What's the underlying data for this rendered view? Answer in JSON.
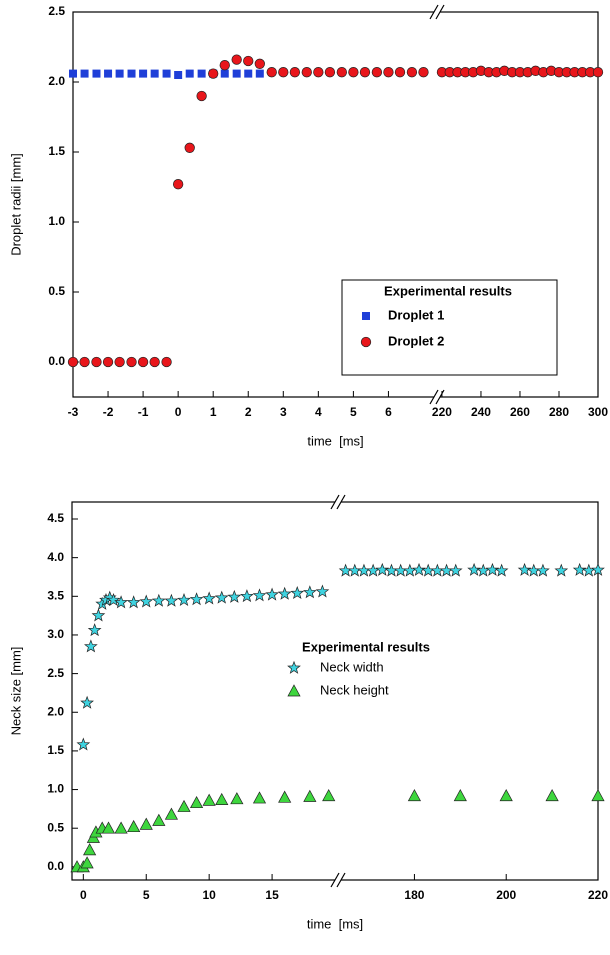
{
  "chart_data": [
    {
      "type": "scatter",
      "ylabel": "Droplet radii [mm]",
      "xlabel": "time  [ms]",
      "legend_title": "Experimental results",
      "legend_box": true,
      "ylim": [
        -0.25,
        2.5
      ],
      "yticks": [
        {
          "value": 0,
          "label": "0.0"
        },
        0.5,
        {
          "value": 1,
          "label": "1.0"
        },
        1.5,
        {
          "value": 2,
          "label": "2.0"
        },
        2.5
      ],
      "x_segments": [
        {
          "xlim": [
            -3,
            7.3
          ],
          "xticks": [
            -3,
            -2,
            -1,
            0,
            1,
            2,
            3,
            4,
            5,
            6
          ]
        },
        {
          "xlim": [
            219,
            300
          ],
          "xticks": [
            220,
            240,
            260,
            280,
            300
          ]
        }
      ],
      "series": [
        {
          "name": "Droplet 1",
          "color": "#1f3fd8",
          "marker": "square",
          "x": [
            -3,
            -2.67,
            -2.33,
            -2,
            -1.67,
            -1.33,
            -1,
            -0.67,
            -0.33,
            0,
            0.33,
            0.67,
            1,
            1.33,
            1.67,
            2,
            2.33
          ],
          "values": [
            2.06,
            2.06,
            2.06,
            2.06,
            2.06,
            2.06,
            2.06,
            2.06,
            2.06,
            2.05,
            2.06,
            2.06,
            2.06,
            2.06,
            2.06,
            2.06,
            2.06
          ]
        },
        {
          "name": "Droplet 2",
          "color": "#e8161b",
          "marker": "circle",
          "x": [
            -3,
            -2.67,
            -2.33,
            -2,
            -1.67,
            -1.33,
            -1,
            -0.67,
            -0.33,
            0,
            0.33,
            0.67,
            1,
            1.33,
            1.67,
            2,
            2.33,
            2.67,
            3,
            3.33,
            3.67,
            4,
            4.33,
            4.67,
            5,
            5.33,
            5.67,
            6,
            6.33,
            6.67,
            7,
            220,
            224,
            228,
            232,
            236,
            240,
            244,
            248,
            252,
            256,
            260,
            264,
            268,
            272,
            276,
            280,
            284,
            288,
            292,
            296,
            300
          ],
          "values": [
            0,
            0,
            0,
            0,
            0,
            0,
            0,
            0,
            0,
            1.27,
            1.53,
            1.9,
            2.06,
            2.12,
            2.16,
            2.15,
            2.13,
            2.07,
            2.07,
            2.07,
            2.07,
            2.07,
            2.07,
            2.07,
            2.07,
            2.07,
            2.07,
            2.07,
            2.07,
            2.07,
            2.07,
            2.07,
            2.07,
            2.07,
            2.07,
            2.07,
            2.08,
            2.07,
            2.07,
            2.08,
            2.07,
            2.07,
            2.07,
            2.08,
            2.07,
            2.08,
            2.07,
            2.07,
            2.07,
            2.07,
            2.07,
            2.07
          ]
        }
      ]
    },
    {
      "type": "scatter",
      "ylabel": "Neck size [mm]",
      "xlabel": "time  [ms]",
      "legend_title": "Experimental results",
      "legend_box": false,
      "ylim": [
        -0.17,
        4.72
      ],
      "yticks": [
        {
          "value": 0,
          "label": "0.0"
        },
        0.5,
        {
          "value": 1,
          "label": "1.0"
        },
        1.5,
        {
          "value": 2,
          "label": "2.0"
        },
        2.5,
        {
          "value": 3,
          "label": "3.0"
        },
        3.5,
        {
          "value": 4,
          "label": "4.0"
        },
        4.5
      ],
      "x_segments": [
        {
          "xlim": [
            -0.9,
            20
          ],
          "xticks": [
            0,
            5,
            10,
            15
          ]
        },
        {
          "xlim": [
            164,
            220
          ],
          "xticks": [
            180,
            200,
            220
          ]
        }
      ],
      "series": [
        {
          "name": "Neck width",
          "color": "#3fd3e0",
          "marker": "star",
          "x": [
            0,
            0.3,
            0.6,
            0.9,
            1.2,
            1.5,
            1.8,
            2.1,
            2.4,
            3,
            4,
            5,
            6,
            7,
            8,
            9,
            10,
            11,
            12,
            13,
            14,
            15,
            16,
            17,
            18,
            19,
            165,
            167,
            169,
            171,
            173,
            175,
            177,
            179,
            181,
            183,
            185,
            187,
            189,
            193,
            195,
            197,
            199,
            204,
            206,
            208,
            212,
            216,
            218,
            220
          ],
          "values": [
            1.58,
            2.12,
            2.85,
            3.06,
            3.25,
            3.4,
            3.45,
            3.48,
            3.45,
            3.42,
            3.42,
            3.43,
            3.44,
            3.44,
            3.45,
            3.46,
            3.47,
            3.48,
            3.49,
            3.5,
            3.51,
            3.52,
            3.53,
            3.54,
            3.55,
            3.56,
            3.83,
            3.83,
            3.83,
            3.83,
            3.84,
            3.83,
            3.83,
            3.83,
            3.84,
            3.83,
            3.83,
            3.83,
            3.83,
            3.84,
            3.83,
            3.84,
            3.83,
            3.84,
            3.83,
            3.83,
            3.83,
            3.84,
            3.83,
            3.84
          ]
        },
        {
          "name": "Neck height",
          "color": "#3ed63e",
          "marker": "triangle",
          "x": [
            -0.5,
            0,
            0.3,
            0.5,
            0.8,
            1,
            1.5,
            2,
            3,
            4,
            5,
            6,
            7,
            8,
            9,
            10,
            11,
            12.2,
            14,
            16,
            18,
            19.5,
            180,
            190,
            200,
            210,
            220
          ],
          "values": [
            0,
            0,
            0.05,
            0.22,
            0.38,
            0.45,
            0.5,
            0.5,
            0.5,
            0.52,
            0.55,
            0.6,
            0.68,
            0.78,
            0.83,
            0.86,
            0.87,
            0.88,
            0.89,
            0.9,
            0.91,
            0.92,
            0.92,
            0.92,
            0.92,
            0.92,
            0.92
          ]
        }
      ]
    }
  ]
}
